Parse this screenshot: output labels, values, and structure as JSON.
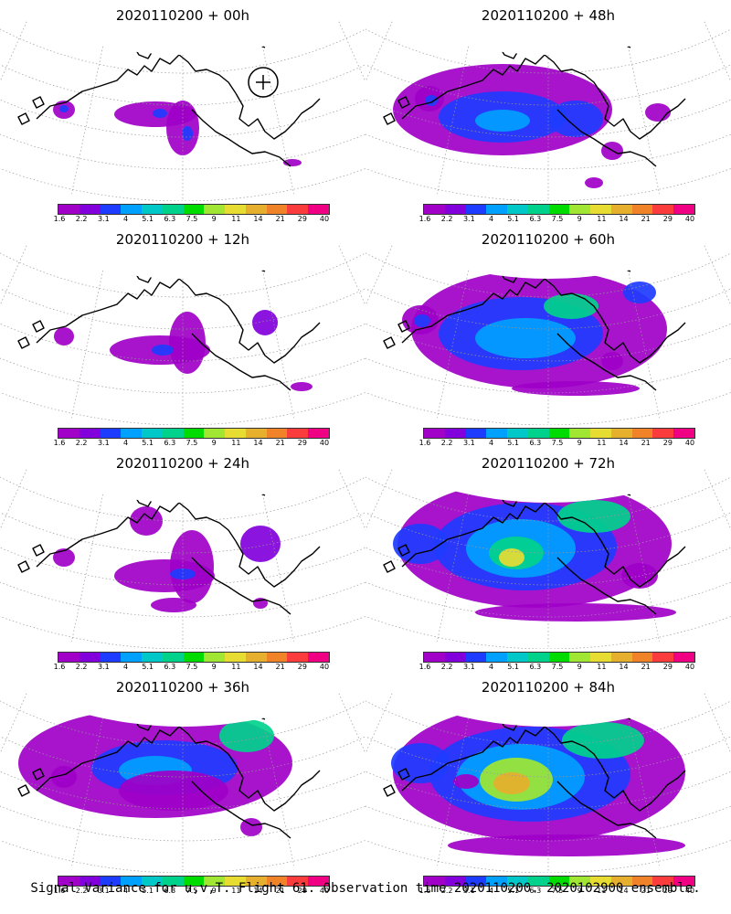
{
  "footer": "Signal Variance for u,v,T. Flight 61. Observation time 2020110200. 2020102900 ensemble.",
  "colors": {
    "palette": [
      "#a000c8",
      "#8200dc",
      "#1e3cff",
      "#00a0ff",
      "#00c8c8",
      "#00d28c",
      "#00dc00",
      "#a0e632",
      "#e6dc32",
      "#e6af2d",
      "#f08228",
      "#fa3c3c",
      "#f00082"
    ],
    "coast": "#000000",
    "grid": "#9a9a9a"
  },
  "chart_data": [
    {
      "type": "heatmap",
      "title": "2020110200 + 00h",
      "lead_hours": 0,
      "colorbar_levels": [
        "1.6",
        "2.2",
        "3.1",
        "4",
        "5.1",
        "6.3",
        "7.5",
        "9",
        "11",
        "14",
        "21",
        "29",
        "40"
      ],
      "max_level_reached": "4",
      "observation_marker": true
    },
    {
      "type": "heatmap",
      "title": "2020110200 + 48h",
      "lead_hours": 48,
      "colorbar_levels": [
        "1.6",
        "2.2",
        "3.1",
        "4",
        "5.1",
        "6.3",
        "7.5",
        "9",
        "11",
        "14",
        "21",
        "29",
        "40"
      ],
      "max_level_reached": "5.1",
      "observation_marker": false
    },
    {
      "type": "heatmap",
      "title": "2020110200 + 12h",
      "lead_hours": 12,
      "colorbar_levels": [
        "1.6",
        "2.2",
        "3.1",
        "4",
        "5.1",
        "6.3",
        "7.5",
        "9",
        "11",
        "14",
        "21",
        "29",
        "40"
      ],
      "max_level_reached": "4",
      "observation_marker": false
    },
    {
      "type": "heatmap",
      "title": "2020110200 + 60h",
      "lead_hours": 60,
      "colorbar_levels": [
        "1.6",
        "2.2",
        "3.1",
        "4",
        "5.1",
        "6.3",
        "7.5",
        "9",
        "11",
        "14",
        "21",
        "29",
        "40"
      ],
      "max_level_reached": "7.5",
      "observation_marker": false
    },
    {
      "type": "heatmap",
      "title": "2020110200 + 24h",
      "lead_hours": 24,
      "colorbar_levels": [
        "1.6",
        "2.2",
        "3.1",
        "4",
        "5.1",
        "6.3",
        "7.5",
        "9",
        "11",
        "14",
        "21",
        "29",
        "40"
      ],
      "max_level_reached": "4",
      "observation_marker": false
    },
    {
      "type": "heatmap",
      "title": "2020110200 + 72h",
      "lead_hours": 72,
      "colorbar_levels": [
        "1.6",
        "2.2",
        "3.1",
        "4",
        "5.1",
        "6.3",
        "7.5",
        "9",
        "11",
        "14",
        "21",
        "29",
        "40"
      ],
      "max_level_reached": "11",
      "observation_marker": false
    },
    {
      "type": "heatmap",
      "title": "2020110200 + 36h",
      "lead_hours": 36,
      "colorbar_levels": [
        "1.6",
        "2.2",
        "3.1",
        "4",
        "5.1",
        "6.3",
        "7.5",
        "9",
        "11",
        "14",
        "21",
        "29",
        "40"
      ],
      "max_level_reached": "9",
      "observation_marker": false
    },
    {
      "type": "heatmap",
      "title": "2020110200 + 84h",
      "lead_hours": 84,
      "colorbar_levels": [
        "1.6",
        "2.2",
        "3.1",
        "4",
        "5.1",
        "6.3",
        "7.5",
        "9",
        "11",
        "14",
        "21",
        "29",
        "40"
      ],
      "max_level_reached": "14",
      "observation_marker": false
    }
  ]
}
